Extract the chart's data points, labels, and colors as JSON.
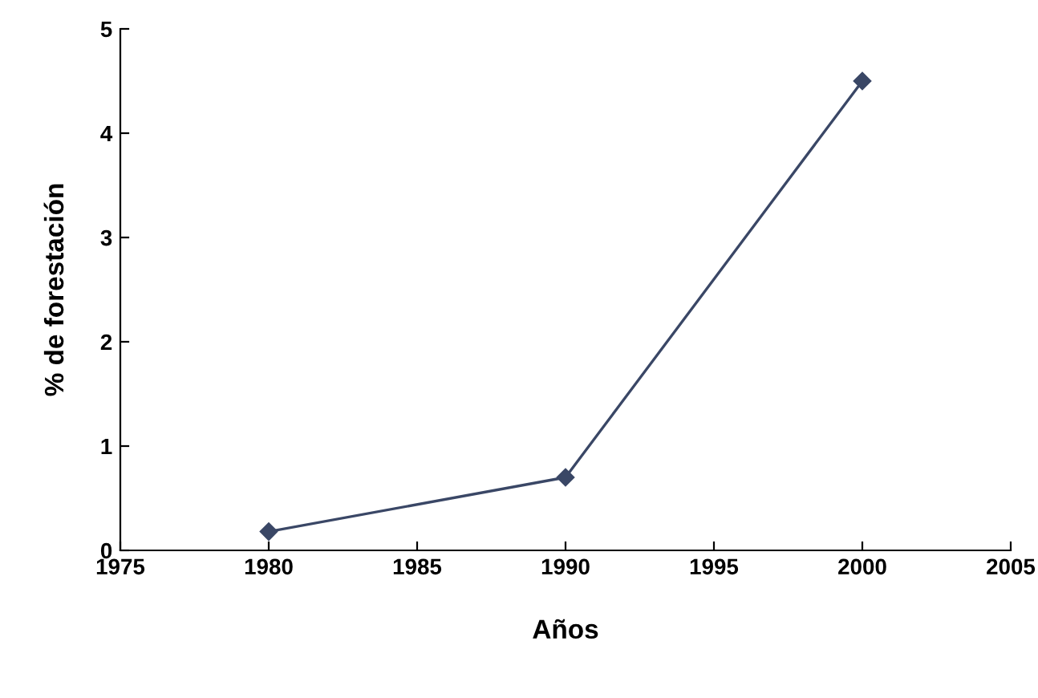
{
  "chart_data": {
    "type": "line",
    "xlabel": "Años",
    "ylabel": "% de forestación",
    "x": [
      1980,
      1990,
      2000
    ],
    "series": [
      {
        "color": "#3a4766",
        "values": [
          0.18,
          0.7,
          4.5
        ]
      }
    ],
    "xlim": [
      1975,
      2005
    ],
    "xticks": [
      1975,
      1980,
      1985,
      1990,
      1995,
      2000,
      2005
    ],
    "ylim": [
      0,
      5
    ],
    "yticks": [
      0,
      1,
      2,
      3,
      4,
      5
    ],
    "marker": "diamond",
    "line_style": "solid",
    "grid": false,
    "legend": false
  }
}
